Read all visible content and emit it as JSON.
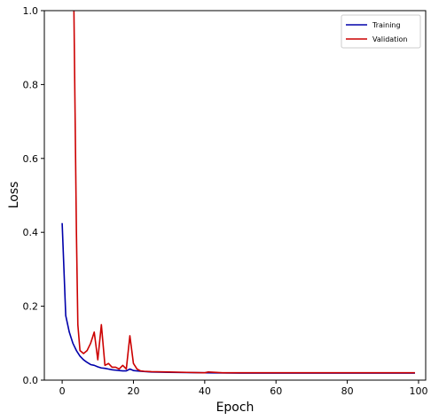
{
  "chart_data": {
    "type": "line",
    "xlabel": "Epoch",
    "ylabel": "Loss",
    "xlim": [
      -5,
      102
    ],
    "ylim": [
      0,
      1.0
    ],
    "xticks": [
      0,
      20,
      40,
      60,
      80,
      100
    ],
    "yticks": [
      0.0,
      0.2,
      0.4,
      0.6,
      0.8,
      1.0
    ],
    "xtick_labels": [
      "0",
      "20",
      "40",
      "60",
      "80",
      "100"
    ],
    "ytick_labels": [
      "0.0",
      "0.2",
      "0.4",
      "0.6",
      "0.8",
      "1.0"
    ],
    "grid": false,
    "legend_position": "top-right",
    "series": [
      {
        "name": "Training",
        "color": "#0000aa",
        "x": [
          0,
          1,
          2,
          3,
          4,
          5,
          6,
          7,
          8,
          9,
          10,
          11,
          12,
          13,
          14,
          15,
          16,
          17,
          18,
          19,
          20,
          22,
          25,
          30,
          40,
          50,
          60,
          70,
          80,
          90,
          99
        ],
        "y": [
          0.425,
          0.175,
          0.13,
          0.1,
          0.08,
          0.065,
          0.055,
          0.048,
          0.042,
          0.04,
          0.036,
          0.033,
          0.032,
          0.03,
          0.028,
          0.027,
          0.026,
          0.025,
          0.025,
          0.03,
          0.026,
          0.024,
          0.022,
          0.021,
          0.02,
          0.019,
          0.019,
          0.019,
          0.019,
          0.019,
          0.019
        ]
      },
      {
        "name": "Validation",
        "color": "#cc0000",
        "x": [
          3.3,
          4,
          4.4,
          5,
          6,
          7,
          8,
          9,
          10,
          11,
          12,
          13,
          14,
          15,
          16,
          17,
          18,
          19,
          20,
          21,
          22,
          23,
          25,
          30,
          35,
          40,
          41,
          45,
          50,
          60,
          70,
          80,
          90,
          99
        ],
        "y": [
          1.0,
          0.4,
          0.15,
          0.08,
          0.072,
          0.08,
          0.1,
          0.13,
          0.055,
          0.15,
          0.04,
          0.045,
          0.035,
          0.035,
          0.03,
          0.04,
          0.03,
          0.12,
          0.045,
          0.03,
          0.025,
          0.024,
          0.023,
          0.022,
          0.021,
          0.02,
          0.022,
          0.02,
          0.02,
          0.02,
          0.02,
          0.02,
          0.02,
          0.02
        ]
      }
    ]
  }
}
